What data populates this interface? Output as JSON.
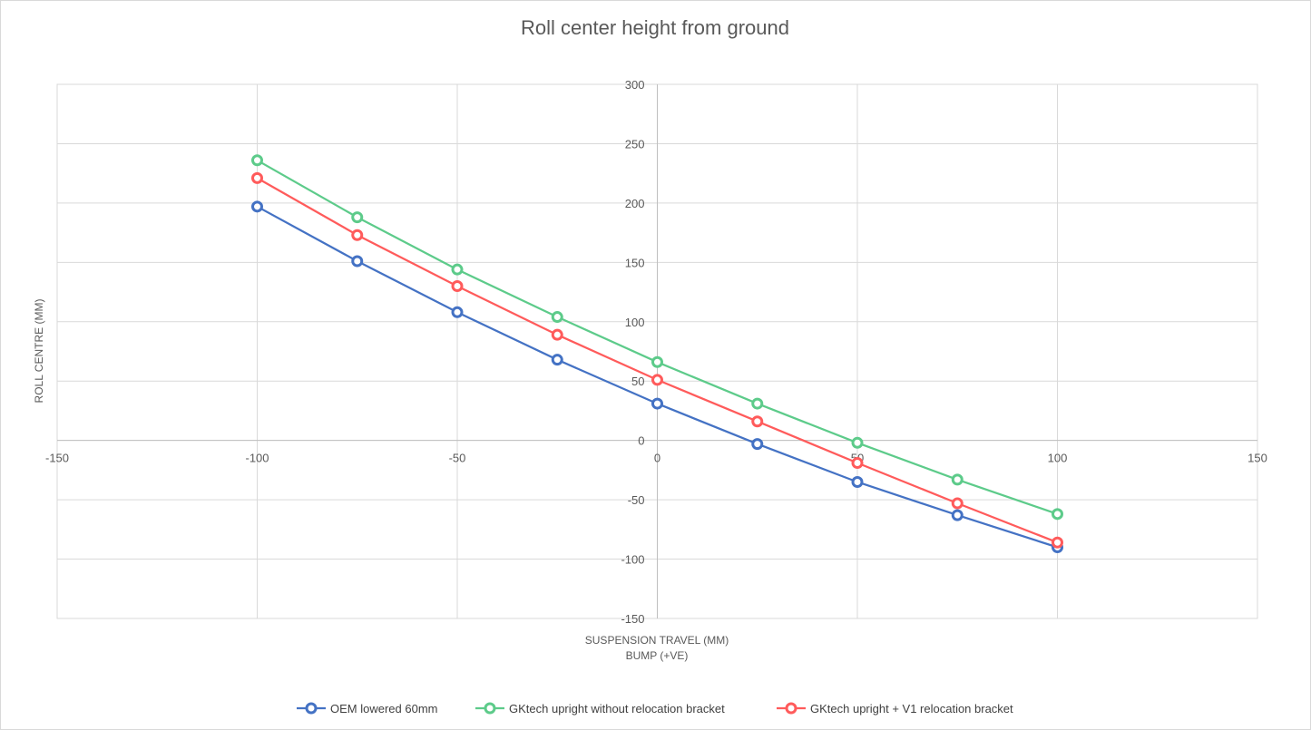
{
  "chart_data": {
    "type": "scatter",
    "title": "Roll center height from ground",
    "xlabel": "SUSPENSION TRAVEL (MM)",
    "xlabel_line2": "BUMP (+VE)",
    "ylabel": "ROLL CENTRE (MM)",
    "xlim": [
      -150,
      150
    ],
    "ylim": [
      -150,
      300
    ],
    "xticks": [
      -150,
      -100,
      -50,
      0,
      50,
      100,
      150
    ],
    "yticks": [
      -150,
      -100,
      -50,
      0,
      50,
      100,
      150,
      200,
      250,
      300
    ],
    "grid": true,
    "legend_position": "bottom",
    "series": [
      {
        "name": "OEM lowered 60mm",
        "color": "#4472C4",
        "x": [
          -100,
          -75,
          -50,
          -25,
          0,
          25,
          50,
          75,
          100
        ],
        "y": [
          197,
          151,
          108,
          68,
          31,
          -3,
          -35,
          -63,
          -90
        ]
      },
      {
        "name": "GKtech upright without relocation bracket",
        "color": "#5DCB8A",
        "x": [
          -100,
          -75,
          -50,
          -25,
          0,
          25,
          50,
          75,
          100
        ],
        "y": [
          236,
          188,
          144,
          104,
          66,
          31,
          -2,
          -33,
          -62
        ]
      },
      {
        "name": "GKtech upright + V1 relocation bracket",
        "color": "#FF5B5B",
        "x": [
          -100,
          -75,
          -50,
          -25,
          0,
          25,
          50,
          75,
          100
        ],
        "y": [
          221,
          173,
          130,
          89,
          51,
          16,
          -19,
          -53,
          -86
        ]
      }
    ]
  }
}
